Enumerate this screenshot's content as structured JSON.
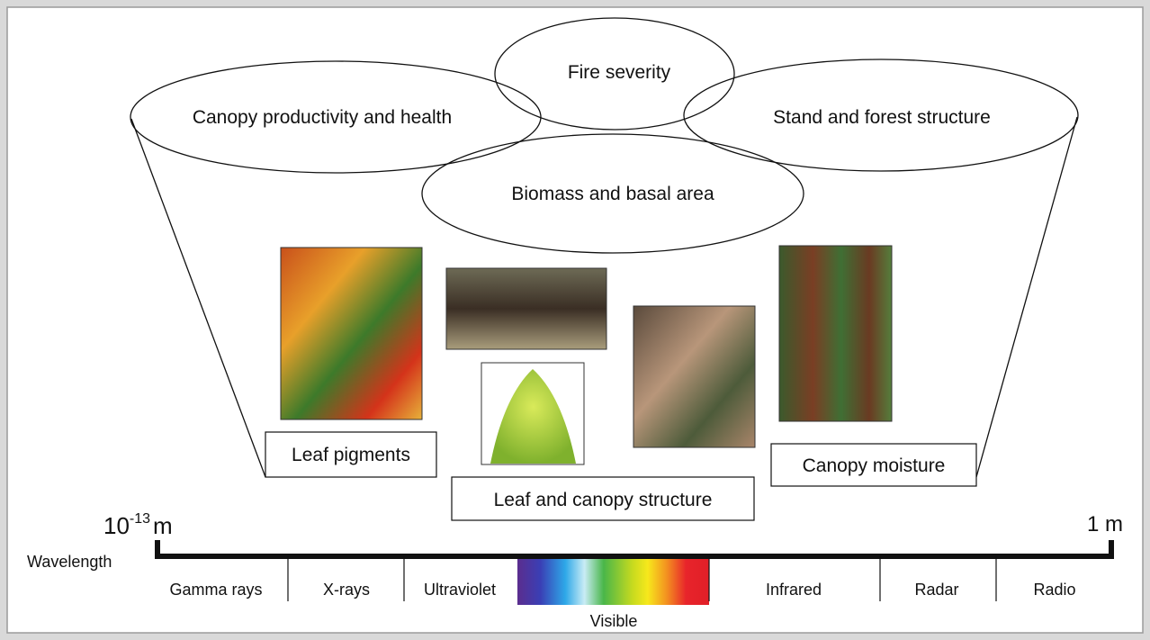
{
  "ellipses": [
    {
      "label": "Canopy productivity and health"
    },
    {
      "label": "Fire severity"
    },
    {
      "label": "Stand and forest structure"
    },
    {
      "label": "Biomass and basal area"
    }
  ],
  "boxes": [
    {
      "label": "Leaf pigments"
    },
    {
      "label": "Leaf and canopy structure"
    },
    {
      "label": "Canopy moisture"
    }
  ],
  "axis": {
    "start": {
      "base": "10",
      "exponent": "-13",
      "unit": "m"
    },
    "end": "1 m",
    "label": "Wavelength",
    "bands": [
      "Gamma rays",
      "X-rays",
      "Ultraviolet",
      "Visible",
      "Infrared",
      "Radar",
      "Radio"
    ]
  }
}
